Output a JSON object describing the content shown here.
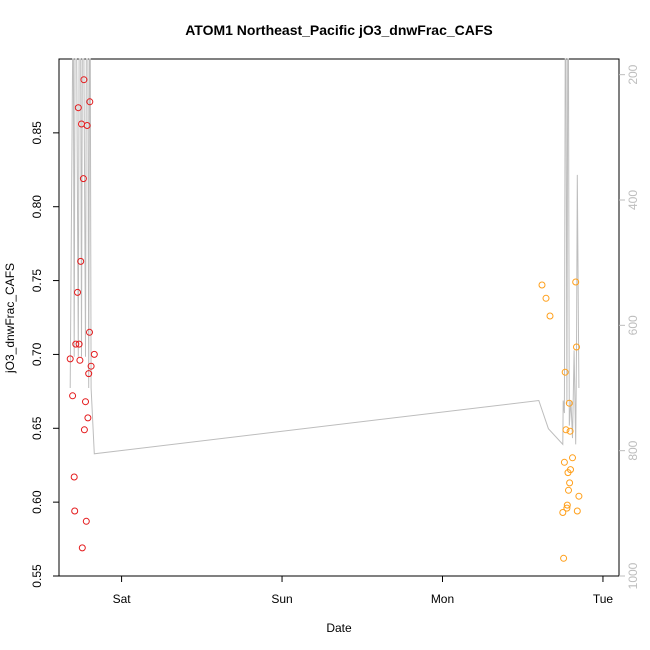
{
  "chart_data": {
    "type": "scatter",
    "title": "ATOM1 Northeast_Pacific jO3_dnwFrac_CAFS",
    "xlabel": "Date",
    "ylabel": "jO3_dnwFrac_CAFS",
    "x_tick_labels": [
      "Sat",
      "Sun",
      "Mon",
      "Tue"
    ],
    "x_tick_days": [
      1,
      2,
      3,
      4
    ],
    "xlim_days": [
      0.61,
      4.1
    ],
    "ylim": [
      0.55,
      0.9
    ],
    "y_ticks": [
      0.55,
      0.6,
      0.65,
      0.7,
      0.75,
      0.8,
      0.85
    ],
    "y_tick_labels": [
      "0.55",
      "0.60",
      "0.65",
      "0.70",
      "0.75",
      "0.80",
      "0.85"
    ],
    "y2_label": "",
    "y2_reversed": true,
    "y2_lim": [
      1000,
      175
    ],
    "y2_ticks": [
      200,
      400,
      600,
      800,
      1000
    ],
    "y2_tick_labels": [
      "200",
      "400",
      "600",
      "800",
      "1000"
    ],
    "colors": {
      "series1": "#e41a1c",
      "series2": "#ff9f1a",
      "altitude_line": "#bdbdbd"
    },
    "series": [
      {
        "color_key": "series1",
        "points": [
          [
            0.68,
            0.697
          ],
          [
            0.695,
            0.672
          ],
          [
            0.705,
            0.617
          ],
          [
            0.708,
            0.594
          ],
          [
            0.715,
            0.707
          ],
          [
            0.725,
            0.742
          ],
          [
            0.73,
            0.867
          ],
          [
            0.735,
            0.707
          ],
          [
            0.74,
            0.696
          ],
          [
            0.745,
            0.763
          ],
          [
            0.75,
            0.856
          ],
          [
            0.755,
            0.569
          ],
          [
            0.762,
            0.819
          ],
          [
            0.765,
            0.886
          ],
          [
            0.768,
            0.649
          ],
          [
            0.775,
            0.668
          ],
          [
            0.78,
            0.587
          ],
          [
            0.785,
            0.855
          ],
          [
            0.79,
            0.657
          ],
          [
            0.795,
            0.687
          ],
          [
            0.8,
            0.715
          ],
          [
            0.802,
            0.871
          ],
          [
            0.81,
            0.692
          ],
          [
            0.83,
            0.7
          ]
        ]
      },
      {
        "color_key": "series2",
        "points": [
          [
            3.62,
            0.747
          ],
          [
            3.645,
            0.738
          ],
          [
            3.67,
            0.726
          ],
          [
            3.75,
            0.593
          ],
          [
            3.755,
            0.562
          ],
          [
            3.76,
            0.627
          ],
          [
            3.765,
            0.688
          ],
          [
            3.77,
            0.649
          ],
          [
            3.775,
            0.596
          ],
          [
            3.778,
            0.598
          ],
          [
            3.782,
            0.62
          ],
          [
            3.785,
            0.608
          ],
          [
            3.79,
            0.667
          ],
          [
            3.792,
            0.613
          ],
          [
            3.795,
            0.648
          ],
          [
            3.798,
            0.622
          ],
          [
            3.81,
            0.63
          ],
          [
            3.83,
            0.749
          ],
          [
            3.835,
            0.705
          ],
          [
            3.84,
            0.594
          ],
          [
            3.85,
            0.604
          ]
        ]
      }
    ],
    "altitude_line": [
      [
        0.68,
        700
      ],
      [
        0.695,
        175
      ],
      [
        0.7,
        175
      ],
      [
        0.705,
        650
      ],
      [
        0.71,
        175
      ],
      [
        0.72,
        175
      ],
      [
        0.73,
        650
      ],
      [
        0.735,
        175
      ],
      [
        0.745,
        175
      ],
      [
        0.75,
        650
      ],
      [
        0.755,
        175
      ],
      [
        0.765,
        175
      ],
      [
        0.775,
        650
      ],
      [
        0.78,
        175
      ],
      [
        0.79,
        175
      ],
      [
        0.795,
        700
      ],
      [
        0.8,
        175
      ],
      [
        0.805,
        175
      ],
      [
        0.81,
        700
      ],
      [
        0.83,
        805
      ],
      [
        3.6,
        720
      ],
      [
        3.66,
        765
      ],
      [
        3.75,
        790
      ],
      [
        3.752,
        720
      ],
      [
        3.76,
        740
      ],
      [
        3.765,
        175
      ],
      [
        3.77,
        175
      ],
      [
        3.775,
        725
      ],
      [
        3.78,
        175
      ],
      [
        3.785,
        175
      ],
      [
        3.79,
        760
      ],
      [
        3.8,
        720
      ],
      [
        3.81,
        780
      ],
      [
        3.82,
        640
      ],
      [
        3.83,
        790
      ],
      [
        3.835,
        640
      ],
      [
        3.84,
        360
      ],
      [
        3.85,
        700
      ]
    ]
  }
}
